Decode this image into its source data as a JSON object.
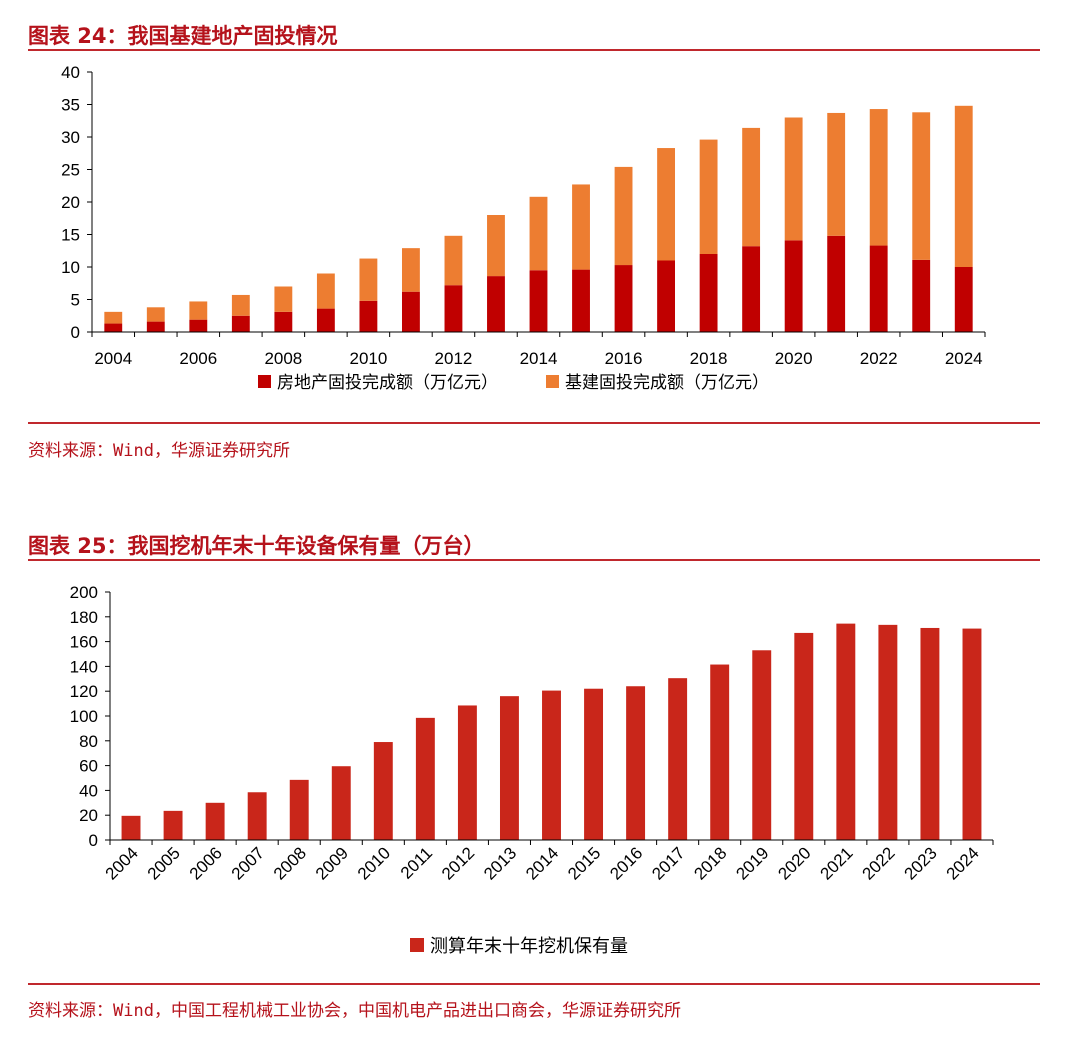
{
  "figure1": {
    "title": "图表 24：我国基建地产固投情况",
    "source": "资料来源：Wind，华源证券研究所"
  },
  "figure2": {
    "title": "图表 25：我国挖机年末十年设备保有量（万台）",
    "source": "资料来源：Wind，中国工程机械工业协会，中国机电产品进出口商会，华源证券研究所"
  },
  "colors": {
    "title_red": "#b5121b",
    "rule_red": "#c0282d",
    "realestate_red": "#c00000",
    "infra_orange": "#ed7d31",
    "excavator_red": "#c9261a"
  },
  "chart_data": [
    {
      "type": "bar",
      "stacked": true,
      "title": "我国基建地产固投情况",
      "categories": [
        "2004",
        "2005",
        "2006",
        "2007",
        "2008",
        "2009",
        "2010",
        "2011",
        "2012",
        "2013",
        "2014",
        "2015",
        "2016",
        "2017",
        "2018",
        "2019",
        "2020",
        "2021",
        "2022",
        "2023",
        "2024"
      ],
      "xticks": [
        "2004",
        "2006",
        "2008",
        "2010",
        "2012",
        "2014",
        "2016",
        "2018",
        "2020",
        "2022",
        "2024"
      ],
      "series": [
        {
          "name": "房地产固投完成额（万亿元）",
          "color": "#c00000",
          "values": [
            1.3,
            1.6,
            1.9,
            2.5,
            3.1,
            3.6,
            4.8,
            6.2,
            7.2,
            8.6,
            9.5,
            9.6,
            10.3,
            11.0,
            12.0,
            13.2,
            14.1,
            14.8,
            13.3,
            11.1,
            10.0
          ]
        },
        {
          "name": "基建固投完成额（万亿元）",
          "color": "#ed7d31",
          "values": [
            1.8,
            2.2,
            2.8,
            3.2,
            3.9,
            5.4,
            6.5,
            6.7,
            7.6,
            9.4,
            11.3,
            13.1,
            15.1,
            17.3,
            17.6,
            18.2,
            18.9,
            18.9,
            21.0,
            22.7,
            24.8
          ]
        }
      ],
      "ylim": [
        0,
        40
      ],
      "yticks": [
        0,
        5,
        10,
        15,
        20,
        25,
        30,
        35,
        40
      ],
      "legend_position": "bottom"
    },
    {
      "type": "bar",
      "title": "我国挖机年末十年设备保有量（万台）",
      "categories": [
        "2004",
        "2005",
        "2006",
        "2007",
        "2008",
        "2009",
        "2010",
        "2011",
        "2012",
        "2013",
        "2014",
        "2015",
        "2016",
        "2017",
        "2018",
        "2019",
        "2020",
        "2021",
        "2022",
        "2023",
        "2024"
      ],
      "series": [
        {
          "name": "测算年末十年挖机保有量",
          "color": "#c9261a",
          "values": [
            19.5,
            23.5,
            30,
            38.5,
            48.5,
            59.5,
            79,
            98.5,
            108.5,
            116,
            120.5,
            122,
            124,
            130.5,
            141.5,
            153,
            167,
            174.5,
            173.5,
            171,
            170.5
          ]
        }
      ],
      "ylim": [
        0,
        200
      ],
      "yticks": [
        0,
        20,
        40,
        60,
        80,
        100,
        120,
        140,
        160,
        180,
        200
      ],
      "legend_position": "bottom"
    }
  ]
}
